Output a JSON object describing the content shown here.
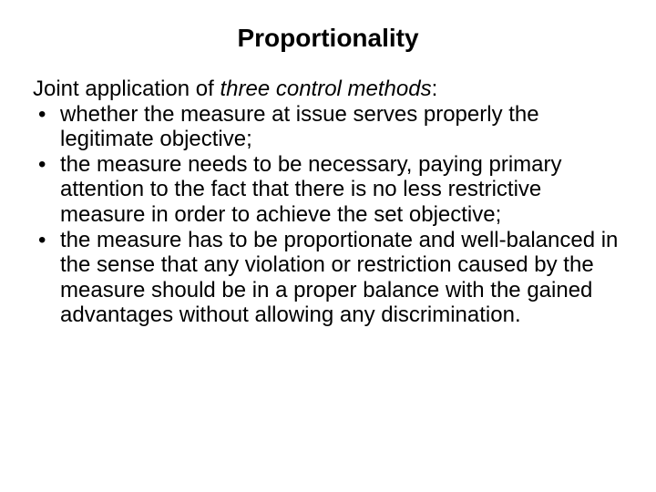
{
  "slide": {
    "title": "Proportionality",
    "intro_prefix": "Joint application of ",
    "intro_italic": "three control methods",
    "intro_suffix": ":",
    "bullets": [
      "whether the measure at issue serves properly the legitimate objective;",
      "the measure needs to be necessary, paying primary attention to the fact that there is no less restrictive measure in order to achieve the set objective;",
      "the measure has to be proportionate and well-balanced in the sense that any violation or restriction caused by the measure should be in a proper balance with the gained advantages without allowing any discrimination."
    ],
    "colors": {
      "background": "#ffffff",
      "text": "#000000"
    },
    "typography": {
      "title_fontsize": 28,
      "title_fontweight": "bold",
      "body_fontsize": 24,
      "font_family": "Arial"
    }
  }
}
